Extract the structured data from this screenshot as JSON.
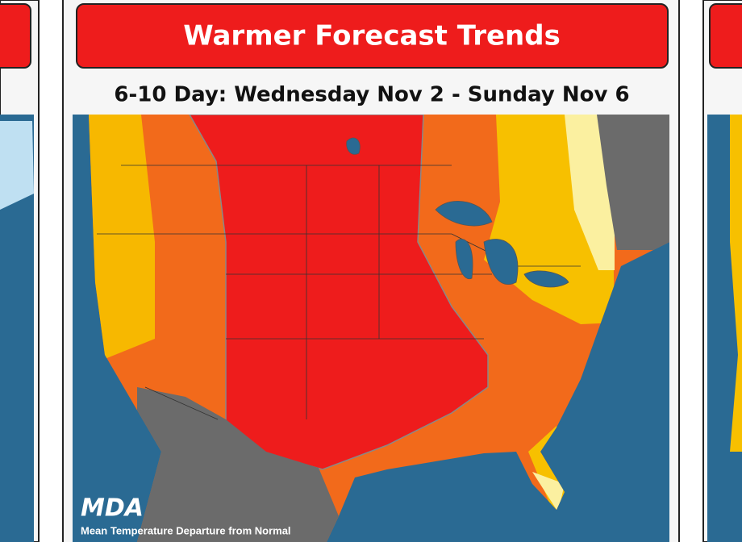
{
  "header": {
    "title": "Warmer Forecast Trends",
    "subtitle": "6-10 Day: Wednesday Nov 2 - Sunday Nov 6"
  },
  "map": {
    "logo": "MDA",
    "caption": "Mean Temperature Departure from Normal"
  }
}
